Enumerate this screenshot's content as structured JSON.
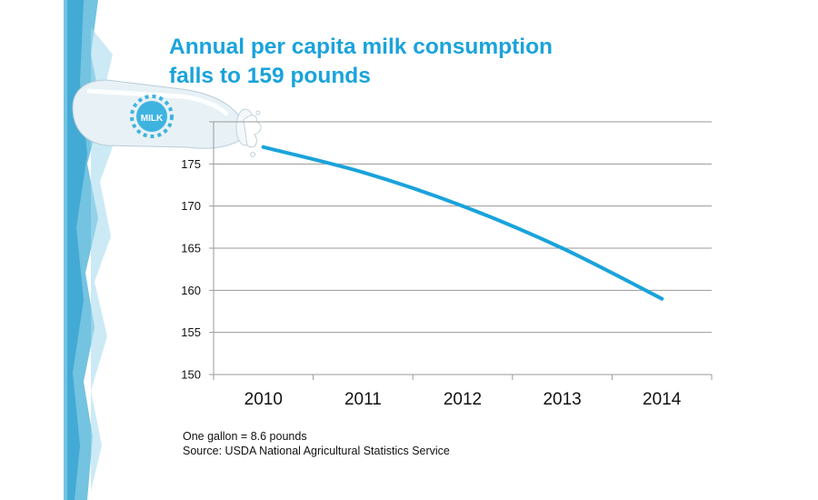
{
  "colors": {
    "title": "#1aa3db",
    "series_line": "#1aa3db",
    "grid": "#9a9a9a",
    "splash_blue": "#4db8d9",
    "bottle_label_blue": "#3fb3e0"
  },
  "decorations": {
    "left_band": "watercolor-blue-band",
    "bottle": "milk-bottle-pouring",
    "bottle_label": "MILK"
  },
  "chart_data": {
    "type": "line",
    "title": "Annual per capita milk consumption falls to 159 pounds",
    "title_lines": [
      "Annual per capita milk consumption",
      "falls to 159 pounds"
    ],
    "xlabel": "",
    "ylabel": "",
    "categories": [
      "2010",
      "2011",
      "2012",
      "2013",
      "2014"
    ],
    "series": [
      {
        "values": [
          177,
          174,
          170,
          165,
          159
        ]
      }
    ],
    "ylim": [
      150,
      180
    ],
    "yticks": [
      150,
      155,
      160,
      165,
      170,
      175
    ],
    "grid": true,
    "legend": "none"
  },
  "footnotes": [
    "One gallon = 8.6 pounds",
    "Source: USDA National Agricultural Statistics Service"
  ]
}
